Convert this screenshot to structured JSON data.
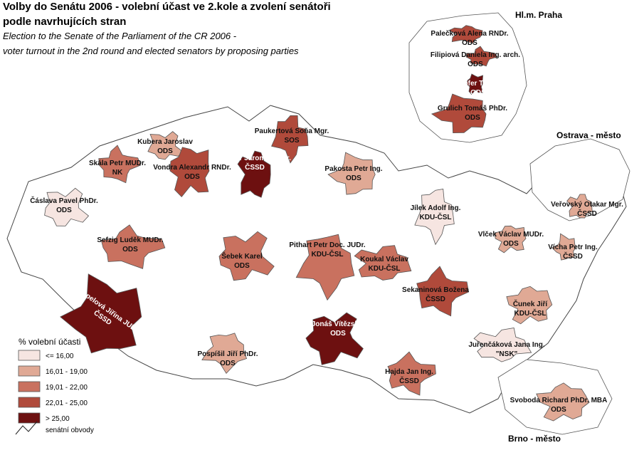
{
  "header": {
    "title_line1": "Volby do Senátu  2006 - volební účast ve 2.kole a zvolení senátoři",
    "title_line2": "podle navrhujících stran",
    "subtitle_line1": "Election to the Senate of the Parliament of the CR 2006 -",
    "subtitle_line2": "voter turnout in the 2nd round and elected senators by proposing parties"
  },
  "insets": [
    "Hl.m. Praha",
    "Ostrava - město",
    "Brno - město"
  ],
  "legend": {
    "title": "% volební účasti",
    "items": [
      {
        "label": "<= 16,00",
        "color": "#f6e5e1"
      },
      {
        "label": "16,01 - 19,00",
        "color": "#e0a995"
      },
      {
        "label": "19,01 - 22,00",
        "color": "#c9715f"
      },
      {
        "label": "22,01 - 25,00",
        "color": "#b04a3b"
      },
      {
        "label": "> 25,00",
        "color": "#6d1010"
      }
    ],
    "boundary_label": "senátní obvody"
  },
  "senators": [
    {
      "name": "Palečková  Alena RNDr.",
      "party": "ODS",
      "color": "#b04a3b"
    },
    {
      "name": "Filipiová  Daniela Ing. arch.",
      "party": "ODS",
      "color": "#b04a3b"
    },
    {
      "name": "Töpfer  Tomáš",
      "party": "ODS",
      "color": "#6d1010"
    },
    {
      "name": "Grulich Tomáš PhDr.",
      "party": "ODS",
      "color": "#b04a3b"
    },
    {
      "name": "Kubera Jaroslav",
      "party": "ODS",
      "color": "#e0a995"
    },
    {
      "name": "Paukertová Soňa Mgr.",
      "party": "SOS",
      "color": "#b04a3b"
    },
    {
      "name": "Jermář Jaromír PhDr.",
      "party": "ČSSD",
      "color": "#6d1010"
    },
    {
      "name": "Skála Petr MUDr.",
      "party": "NK",
      "color": "#c9715f"
    },
    {
      "name": "Vondra Alexandr RNDr.",
      "party": "ODS",
      "color": "#b04a3b"
    },
    {
      "name": "Pakosta Petr Ing.",
      "party": "ODS",
      "color": "#e0a995"
    },
    {
      "name": "Čáslava Pavel PhDr.",
      "party": "ODS",
      "color": "#f6e5e1"
    },
    {
      "name": "Jílek Adolf Ing.",
      "party": "KDU-ČSL",
      "color": "#f6e5e1"
    },
    {
      "name": "Veřovský Otakar Mgr.",
      "party": "ČSSD",
      "color": "#e0a995"
    },
    {
      "name": "Sefzig Luděk MUDr.",
      "party": "ODS",
      "color": "#c9715f"
    },
    {
      "name": "Vlček Václav MUDr.",
      "party": "ODS",
      "color": "#e0a995"
    },
    {
      "name": "Vícha Petr Ing.",
      "party": "ČSSD",
      "color": "#e0a995"
    },
    {
      "name": "Šebek Karel",
      "party": "ODS",
      "color": "#c9715f"
    },
    {
      "name": "Pithart Petr Doc. JUDr.",
      "party": "KDU-ČSL",
      "color": "#c9715f"
    },
    {
      "name": "Koukal Václav",
      "party": "KDU-ČSL",
      "color": "#c9715f"
    },
    {
      "name": "Sekaninová  Božena",
      "party": "ČSSD",
      "color": "#b04a3b"
    },
    {
      "name": "Čunek Jiří",
      "party": "KDU-ČSL",
      "color": "#e0a995"
    },
    {
      "name": "Rippelová  Jiřina JUDr.",
      "party": "ČSSD",
      "color": "#6d1010"
    },
    {
      "name": "Jonáš Vítězslav",
      "party": "ODS",
      "color": "#6d1010"
    },
    {
      "name": "Pospíšil Jiří PhDr.",
      "party": "ODS",
      "color": "#e0a995"
    },
    {
      "name": "Juřenčáková  Jana Ing.",
      "party": "\"NSK\"",
      "color": "#f6e5e1"
    },
    {
      "name": "Hajda Jan Ing.",
      "party": "ČSSD",
      "color": "#c9715f"
    },
    {
      "name": "Svoboda Richard PhDr. MBA",
      "party": "ODS",
      "color": "#e0a995"
    }
  ]
}
